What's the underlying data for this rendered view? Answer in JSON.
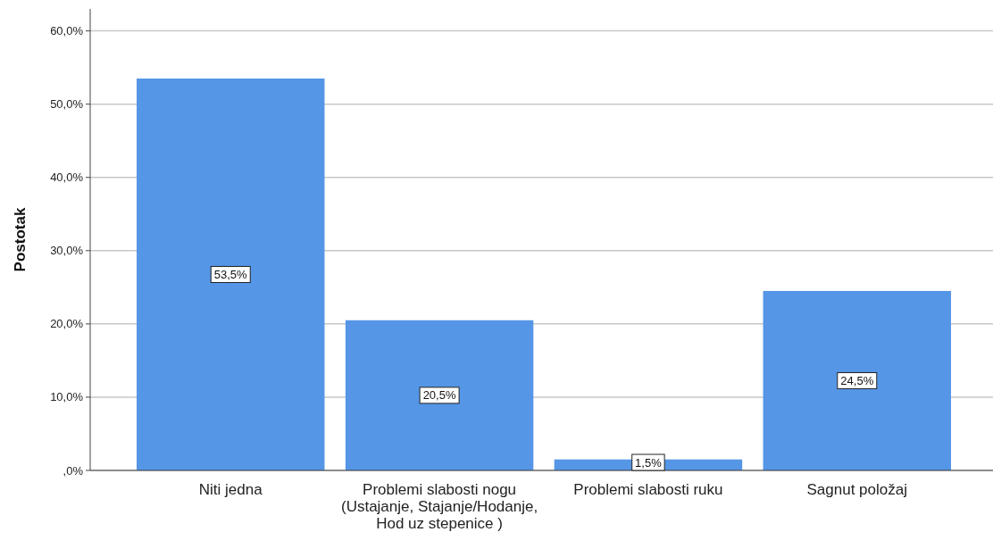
{
  "chart_data": {
    "type": "bar",
    "ylabel": "Postotak",
    "categories": [
      "Niti jedna",
      "Problemi slabosti nogu (Ustajanje, Stajanje/Hodanje, Hod uz stepenice )",
      "Problemi slabosti ruku",
      "Sagnut položaj"
    ],
    "values": [
      53.5,
      20.5,
      1.5,
      24.5
    ],
    "value_labels": [
      "53,5%",
      "20,5%",
      "1,5%",
      "24,5%"
    ],
    "color": "#5596e6",
    "ylim": [
      0,
      63
    ],
    "yticks": [
      {
        "value": 0,
        "label": ",0%"
      },
      {
        "value": 10,
        "label": "10,0%"
      },
      {
        "value": 20,
        "label": "20,0%"
      },
      {
        "value": 30,
        "label": "30,0%"
      },
      {
        "value": 40,
        "label": "40,0%"
      },
      {
        "value": 50,
        "label": "50,0%"
      },
      {
        "value": 60,
        "label": "60,0%"
      }
    ],
    "grid": "y"
  }
}
